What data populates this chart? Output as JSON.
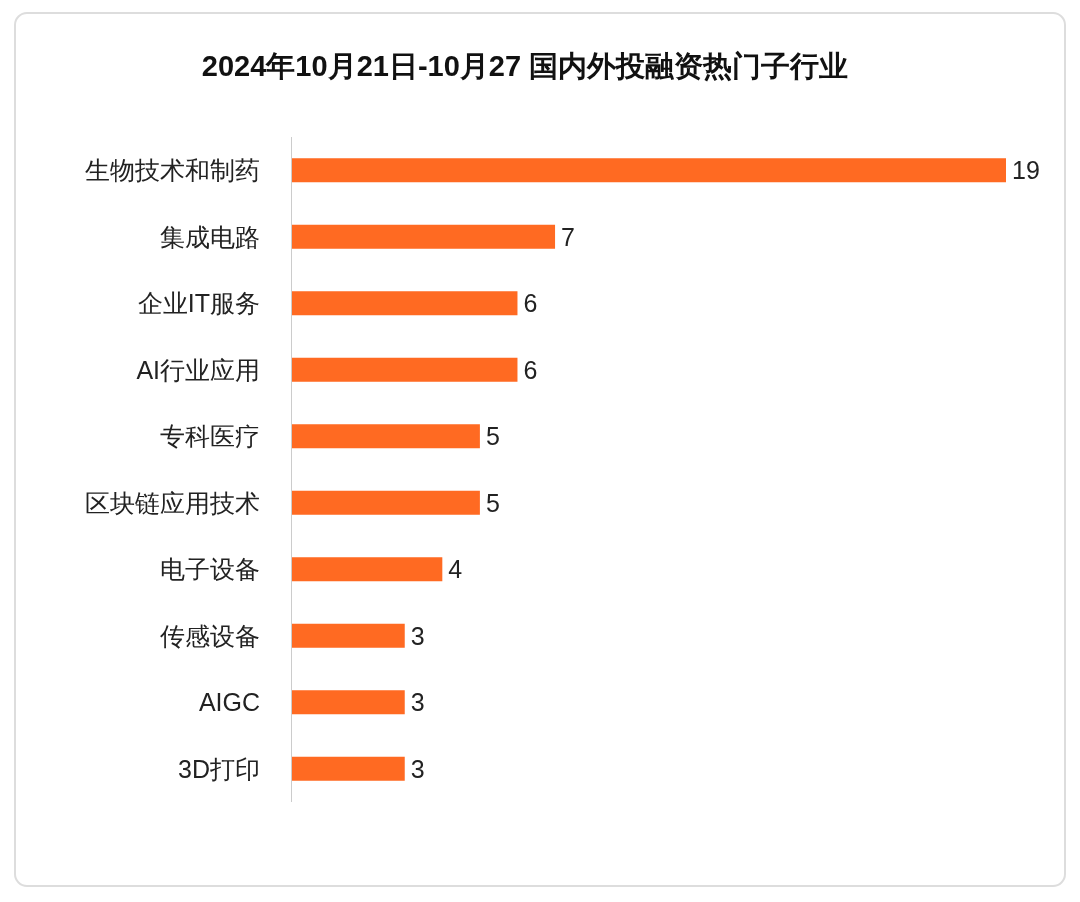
{
  "chart_data": {
    "type": "bar",
    "orientation": "horizontal",
    "title": "2024年10月21日-10月27 国内外投融资热门子行业",
    "categories": [
      "生物技术和制药",
      "集成电路",
      "企业IT服务",
      "AI行业应用",
      "专科医疗",
      "区块链应用技术",
      "电子设备",
      "传感设备",
      "AIGC",
      "3D打印"
    ],
    "values": [
      19,
      7,
      6,
      6,
      5,
      5,
      4,
      3,
      3,
      3
    ],
    "color": "#ff6a22",
    "data_labels": true
  }
}
